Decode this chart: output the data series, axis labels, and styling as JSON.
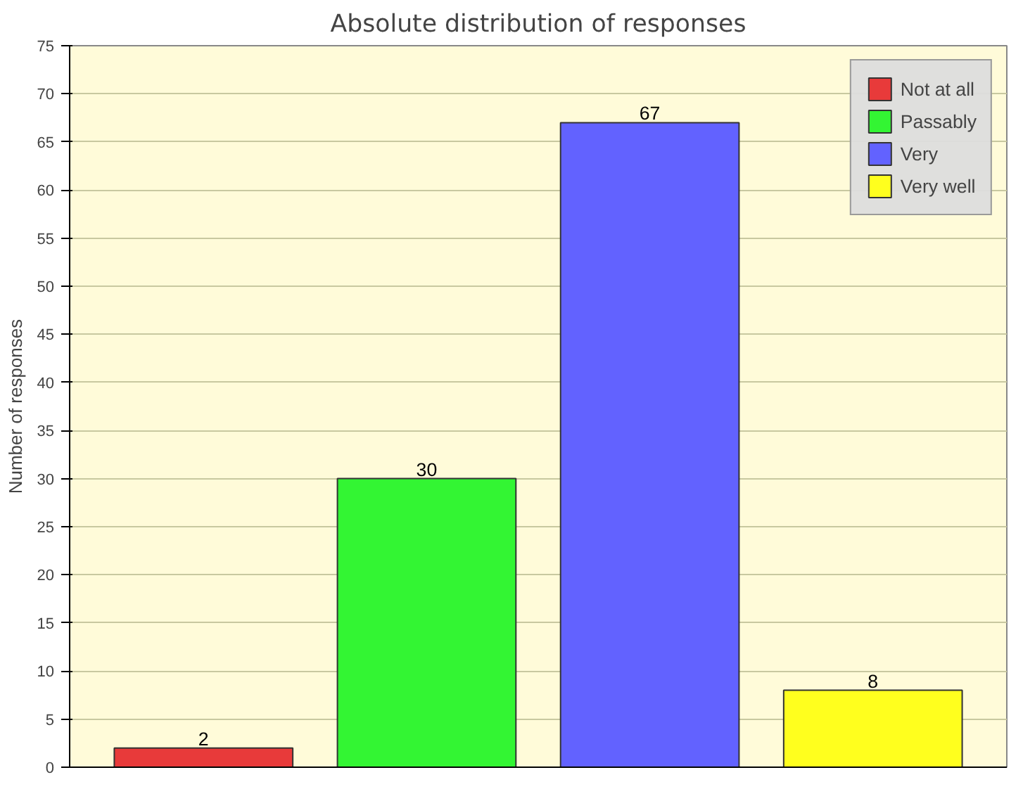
{
  "chart_data": {
    "type": "bar",
    "title": "Absolute distribution of responses",
    "ylabel": "Number of responses",
    "categories": [
      null,
      null,
      null,
      null
    ],
    "series": [
      {
        "name": "Not at all",
        "color": "#e83a3a",
        "values": [
          2,
          null,
          null,
          null
        ]
      },
      {
        "name": "Passably",
        "color": "#33f533",
        "values": [
          null,
          30,
          null,
          null
        ]
      },
      {
        "name": "Very",
        "color": "#6262ff",
        "values": [
          null,
          null,
          67,
          null
        ]
      },
      {
        "name": "Very well",
        "color": "#ffff1e",
        "values": [
          null,
          null,
          null,
          8
        ]
      }
    ],
    "ylim": [
      0,
      75
    ],
    "yticks": [
      0,
      5,
      10,
      15,
      20,
      25,
      30,
      35,
      40,
      45,
      50,
      55,
      60,
      65,
      70,
      75
    ],
    "grid": "y",
    "legend": "top right",
    "data_labels": true
  }
}
